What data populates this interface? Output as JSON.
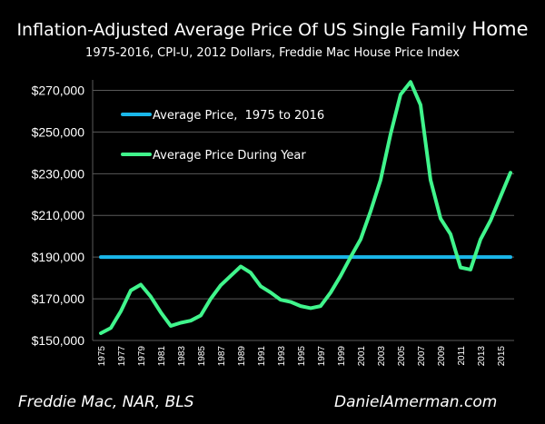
{
  "chart_data": {
    "type": "line",
    "title": "Inflation-Adjusted Average Price Of US Single Family",
    "title_last_word": "Home",
    "subtitle": "1975-2016, CPI-U, 2012 Dollars, Freddie Mac House Price Index",
    "xlabel": "",
    "ylabel": "",
    "x": [
      1975,
      1976,
      1977,
      1978,
      1979,
      1980,
      1981,
      1982,
      1983,
      1984,
      1985,
      1986,
      1987,
      1988,
      1989,
      1990,
      1991,
      1992,
      1993,
      1994,
      1995,
      1996,
      1997,
      1998,
      1999,
      2000,
      2001,
      2002,
      2003,
      2004,
      2005,
      2006,
      2007,
      2008,
      2009,
      2010,
      2011,
      2012,
      2013,
      2014,
      2015,
      2016
    ],
    "xlim": [
      1975,
      2016
    ],
    "ylim": [
      150000,
      275000
    ],
    "y_ticks": [
      "$150,000",
      "$170,000",
      "$190,000",
      "$210,000",
      "$230,000",
      "$250,000",
      "$270,000"
    ],
    "y_tick_values": [
      150000,
      170000,
      190000,
      210000,
      230000,
      250000,
      270000
    ],
    "x_ticks": [
      "1975",
      "1977",
      "1979",
      "1981",
      "1983",
      "1985",
      "1987",
      "1989",
      "1991",
      "1993",
      "1995",
      "1997",
      "1999",
      "2001",
      "2003",
      "2005",
      "2007",
      "2009",
      "2011",
      "2013",
      "2015"
    ],
    "grid": true,
    "legend_position": "top-left",
    "series": [
      {
        "name": "Average Price,  1975 to 2016",
        "color": "#1ab7ea",
        "values": [
          190000,
          190000,
          190000,
          190000,
          190000,
          190000,
          190000,
          190000,
          190000,
          190000,
          190000,
          190000,
          190000,
          190000,
          190000,
          190000,
          190000,
          190000,
          190000,
          190000,
          190000,
          190000,
          190000,
          190000,
          190000,
          190000,
          190000,
          190000,
          190000,
          190000,
          190000,
          190000,
          190000,
          190000,
          190000,
          190000,
          190000,
          190000,
          190000,
          190000,
          190000,
          190000
        ]
      },
      {
        "name": "Average Price During Year",
        "color": "#40f58c",
        "values": [
          153500,
          156000,
          164000,
          174000,
          176800,
          171000,
          163500,
          157000,
          158500,
          159500,
          162000,
          170000,
          176500,
          181000,
          185500,
          182500,
          176000,
          173000,
          169500,
          168500,
          166500,
          165500,
          166500,
          173000,
          181000,
          190000,
          198500,
          212000,
          227000,
          249000,
          268000,
          274000,
          263000,
          227000,
          208500,
          201000,
          185000,
          184000,
          198500,
          207500,
          219000,
          230500
        ]
      }
    ]
  },
  "footer": {
    "source": "Freddie Mac, NAR, BLS",
    "site": "DanielAmerman.com"
  }
}
